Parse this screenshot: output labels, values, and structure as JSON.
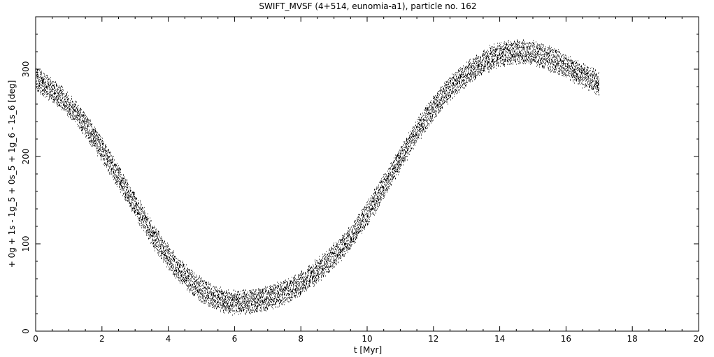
{
  "chart_data": {
    "type": "scatter",
    "title": "SWIFT_MVSF (4+514, eunomia-a1), particle no. 162",
    "xlabel": "t [Myr]",
    "ylabel": "+ 0g + 1s - 1g_5 + 0s_5 + 1g_6 - 1s_6 [deg]",
    "xlim": [
      0,
      20
    ],
    "ylim": [
      0,
      360
    ],
    "x_ticks": [
      0,
      2,
      4,
      6,
      8,
      10,
      12,
      14,
      16,
      18,
      20
    ],
    "y_ticks": [
      0,
      100,
      200,
      300
    ],
    "grid": false,
    "legend": "none",
    "point_color": "#000000",
    "series": [
      {
        "x": [
          0.0,
          0.25,
          0.5,
          0.75,
          1.0,
          1.25,
          1.5,
          1.75,
          2.0,
          2.25,
          2.5,
          2.75,
          3.0,
          3.25,
          3.5,
          3.75,
          4.0,
          4.25,
          4.5,
          4.75,
          5.0,
          5.25,
          5.5,
          5.75,
          6.0,
          6.25,
          6.5,
          6.75,
          7.0,
          7.25,
          7.5,
          7.75,
          8.0,
          8.25,
          8.5,
          8.75,
          9.0,
          9.25,
          9.5,
          9.75,
          10.0,
          10.25,
          10.5,
          10.75,
          11.0,
          11.25,
          11.5,
          11.75,
          12.0,
          12.25,
          12.5,
          12.75,
          13.0,
          13.25,
          13.5,
          13.75,
          14.0,
          14.25,
          14.5,
          14.75,
          15.0,
          15.25,
          15.5,
          15.75,
          16.0,
          16.25,
          16.5,
          16.75,
          17.0
        ],
        "values": [
          288,
          282,
          275,
          268,
          258,
          248,
          236,
          222,
          207,
          192,
          176,
          160,
          144,
          128,
          112,
          98,
          85,
          73,
          63,
          54,
          47,
          41,
          37,
          34,
          33,
          33,
          34,
          36,
          38,
          41,
          45,
          49,
          55,
          62,
          69,
          78,
          87,
          97,
          108,
          121,
          135,
          150,
          166,
          182,
          198,
          214,
          229,
          243,
          256,
          268,
          278,
          287,
          295,
          302,
          308,
          313,
          317,
          319,
          320,
          320,
          318,
          315,
          312,
          308,
          303,
          298,
          293,
          288,
          283
        ],
        "band_width_deg": 12
      }
    ]
  }
}
